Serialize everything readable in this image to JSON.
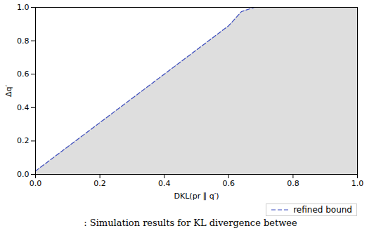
{
  "chart_data": {
    "type": "line",
    "xlabel": "DKL(pr ∥ q′)",
    "ylabel": "Δq′",
    "caption": ": Simulation results for KL divergence betwee",
    "xlim": [
      0,
      1
    ],
    "ylim": [
      0,
      1
    ],
    "xticks": [
      {
        "value": 0,
        "label": "0.0"
      },
      0.2,
      0.4,
      0.6,
      0.8,
      {
        "value": 1,
        "label": "1.0"
      }
    ],
    "yticks": [
      {
        "value": 0,
        "label": "0.0"
      },
      0.2,
      0.4,
      0.6,
      0.8,
      {
        "value": 1,
        "label": "1.0"
      }
    ],
    "legend": "lower right",
    "series": [
      {
        "type": "area",
        "color": "#dedede",
        "x": [
          0,
          0.1,
          0.2,
          0.3,
          0.4,
          0.5,
          0.6,
          0.64,
          0.68,
          1.0
        ],
        "values": [
          0.02,
          0.165,
          0.31,
          0.455,
          0.6,
          0.745,
          0.89,
          0.975,
          1.0,
          1.0
        ]
      },
      {
        "name": "refined bound",
        "type": "line",
        "color": "#3b4cc0",
        "line_style": "dashed",
        "x": [
          0,
          0.1,
          0.2,
          0.3,
          0.4,
          0.5,
          0.6,
          0.64,
          0.68
        ],
        "values": [
          0.02,
          0.165,
          0.31,
          0.455,
          0.6,
          0.745,
          0.89,
          0.975,
          1.0
        ]
      }
    ]
  }
}
